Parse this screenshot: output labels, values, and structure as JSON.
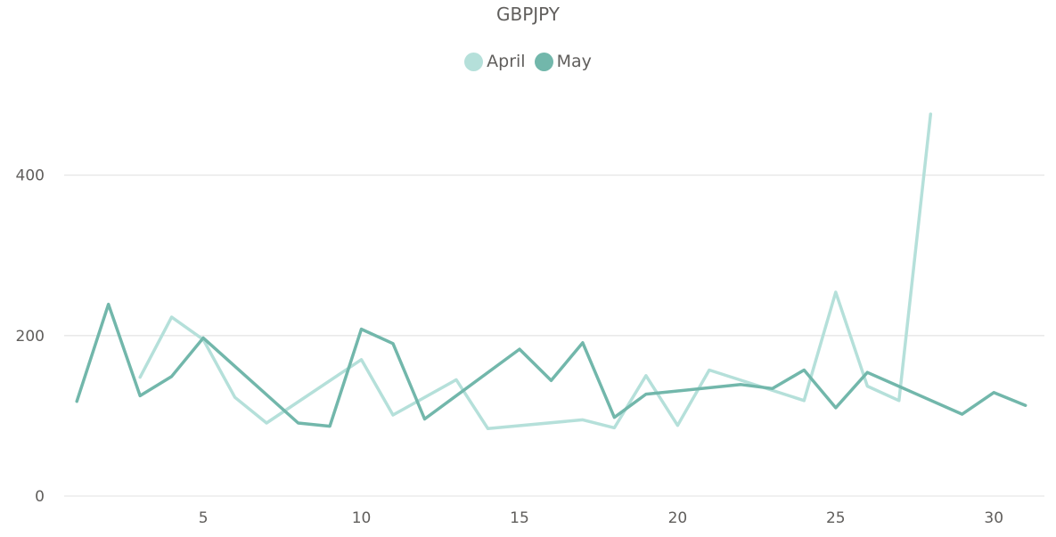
{
  "chart_data": {
    "type": "line",
    "title": "GBPJPY",
    "xlabel": "",
    "ylabel": "",
    "xlim": [
      0.6,
      31.6
    ],
    "ylim": [
      0,
      485
    ],
    "x_ticks": [
      5,
      10,
      15,
      20,
      25,
      30
    ],
    "y_ticks": [
      0,
      200,
      400
    ],
    "grid": "horizontal",
    "legend_position": "top-center",
    "series": [
      {
        "name": "April",
        "color": "#b5e0da",
        "points": [
          [
            3,
            148
          ],
          [
            4,
            223
          ],
          [
            5,
            195
          ],
          [
            6,
            123
          ],
          [
            7,
            91
          ],
          [
            10,
            170
          ],
          [
            11,
            101
          ],
          [
            13,
            145
          ],
          [
            14,
            84
          ],
          [
            17,
            95
          ],
          [
            18,
            85
          ],
          [
            19,
            150
          ],
          [
            20,
            88
          ],
          [
            21,
            157
          ],
          [
            24,
            119
          ],
          [
            25,
            254
          ],
          [
            26,
            137
          ],
          [
            27,
            119
          ],
          [
            28,
            476
          ]
        ]
      },
      {
        "name": "May",
        "color": "#72b7ab",
        "points": [
          [
            1,
            118
          ],
          [
            2,
            239
          ],
          [
            3,
            125
          ],
          [
            4,
            149
          ],
          [
            5,
            197
          ],
          [
            8,
            91
          ],
          [
            9,
            87
          ],
          [
            10,
            208
          ],
          [
            11,
            190
          ],
          [
            12,
            96
          ],
          [
            15,
            183
          ],
          [
            16,
            144
          ],
          [
            17,
            191
          ],
          [
            18,
            98
          ],
          [
            19,
            127
          ],
          [
            22,
            139
          ],
          [
            23,
            134
          ],
          [
            24,
            157
          ],
          [
            25,
            110
          ],
          [
            26,
            154
          ],
          [
            29,
            102
          ],
          [
            30,
            129
          ],
          [
            31,
            113
          ]
        ]
      }
    ]
  }
}
